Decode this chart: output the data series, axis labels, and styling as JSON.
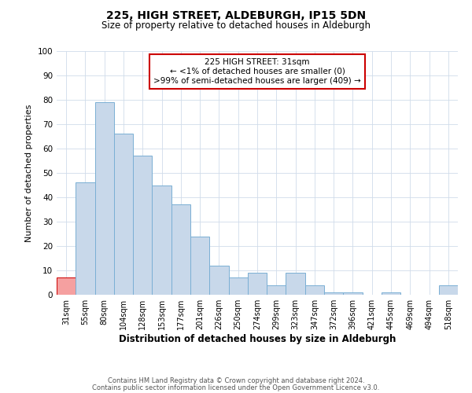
{
  "title": "225, HIGH STREET, ALDEBURGH, IP15 5DN",
  "subtitle": "Size of property relative to detached houses in Aldeburgh",
  "xlabel": "Distribution of detached houses by size in Aldeburgh",
  "ylabel": "Number of detached properties",
  "bar_color": "#c8d8ea",
  "bar_edge_color": "#7aafd4",
  "highlight_bar_color": "#f5a0a0",
  "highlight_bar_edge_color": "#cc0000",
  "bin_labels": [
    "31sqm",
    "55sqm",
    "80sqm",
    "104sqm",
    "128sqm",
    "153sqm",
    "177sqm",
    "201sqm",
    "226sqm",
    "250sqm",
    "274sqm",
    "299sqm",
    "323sqm",
    "347sqm",
    "372sqm",
    "396sqm",
    "421sqm",
    "445sqm",
    "469sqm",
    "494sqm",
    "518sqm"
  ],
  "bar_heights": [
    7,
    46,
    79,
    66,
    57,
    45,
    37,
    24,
    12,
    7,
    9,
    4,
    9,
    4,
    1,
    1,
    0,
    1,
    0,
    0,
    4
  ],
  "highlight_index": 0,
  "ylim": [
    0,
    100
  ],
  "yticks": [
    0,
    10,
    20,
    30,
    40,
    50,
    60,
    70,
    80,
    90,
    100
  ],
  "annotation_title": "225 HIGH STREET: 31sqm",
  "annotation_line1": "← <1% of detached houses are smaller (0)",
  "annotation_line2": ">99% of semi-detached houses are larger (409) →",
  "annotation_box_color": "#ffffff",
  "annotation_box_edge_color": "#cc0000",
  "footer_line1": "Contains HM Land Registry data © Crown copyright and database right 2024.",
  "footer_line2": "Contains public sector information licensed under the Open Government Licence v3.0.",
  "background_color": "#ffffff",
  "grid_color": "#d0dcea"
}
